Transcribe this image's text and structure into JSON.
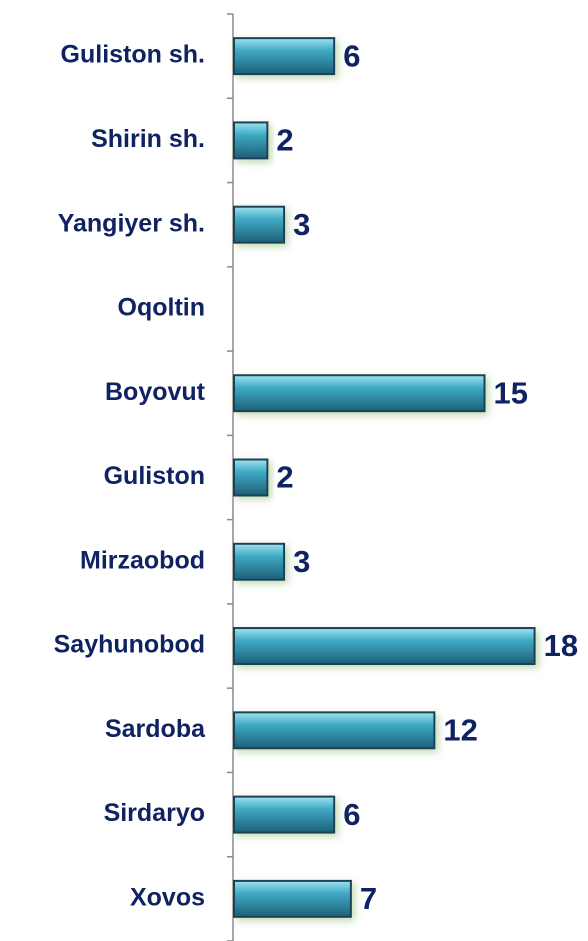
{
  "chart_data": {
    "type": "bar",
    "orientation": "horizontal",
    "categories": [
      "Guliston sh.",
      "Shirin sh.",
      "Yangiyer sh.",
      "Oqoltin",
      "Boyovut",
      "Guliston",
      "Mirzaobod",
      "Sayhunobod",
      "Sardoba",
      "Sirdaryo",
      "Xovos"
    ],
    "values": [
      6,
      2,
      3,
      null,
      15,
      2,
      3,
      18,
      12,
      6,
      7
    ],
    "color": "#3fa9c4"
  }
}
